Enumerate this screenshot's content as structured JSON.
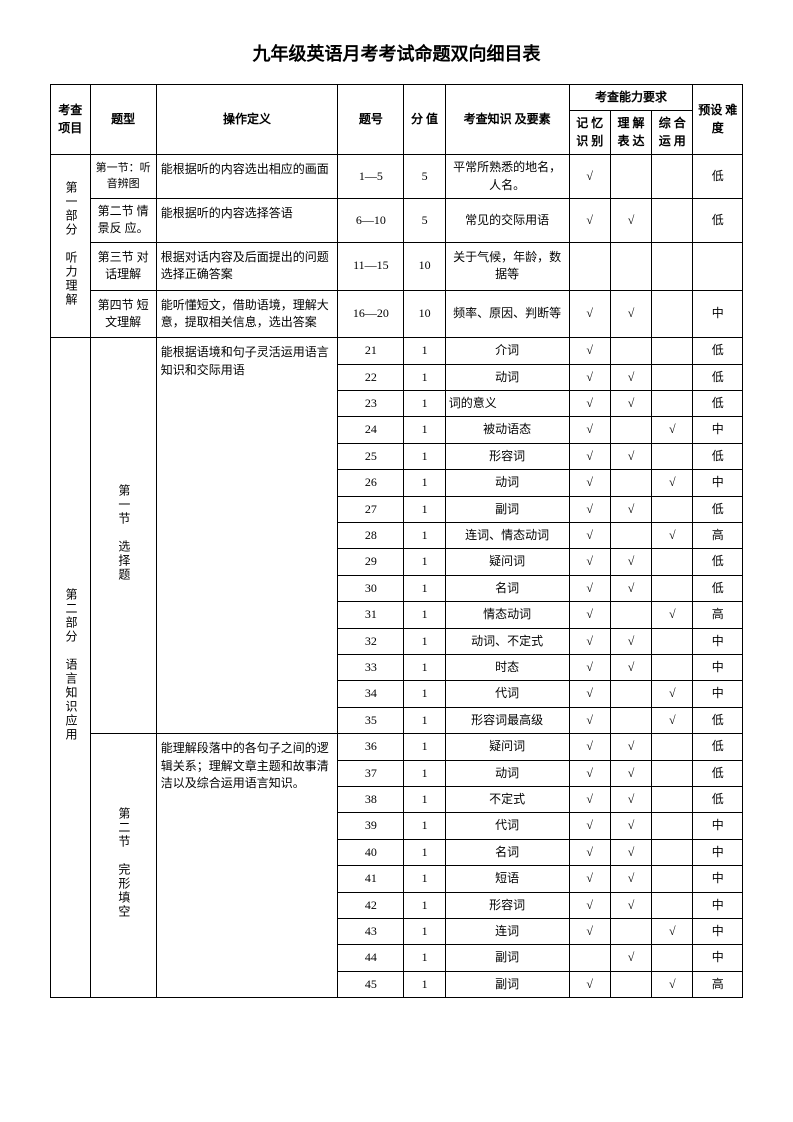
{
  "title": "九年级英语月考考试命题双向细目表",
  "headers": {
    "project": "考查\n项目",
    "type": "题型",
    "definition": "操作定义",
    "number": "题号",
    "score": "分\n值",
    "knowledge": "考查知识\n及要素",
    "ability_group": "考查能力要求",
    "memory": "记\n忆\n识\n别",
    "understand": "理\n解\n表\n达",
    "apply": "综\n合\n运\n用",
    "difficulty": "预设\n难度"
  },
  "part1": {
    "label": "第一部分　听力理解",
    "sec1_type": "第一节：听\n音辨图",
    "sec1_def": "能根据听的内容选出相应的画面",
    "sec1_num": "1—5",
    "sec1_score": "5",
    "sec1_know": "平常所熟悉的地名，人名。",
    "sec1_mem": "√",
    "sec1_und": "",
    "sec1_app": "",
    "sec1_diff": "低",
    "sec2_type": "第二节\n情景反\n应。",
    "sec2_def": "能根据听的内容选择答语",
    "sec2_num": "6—10",
    "sec2_score": "5",
    "sec2_know": "常见的交际用语",
    "sec2_mem": "√",
    "sec2_und": "√",
    "sec2_app": "",
    "sec2_diff": "低",
    "sec3_type": "第三节\n对话理解",
    "sec3_def": "根据对话内容及后面提出的问题选择正确答案",
    "sec3_num": "11—15",
    "sec3_score": "10",
    "sec3_know": "关于气候，年龄，数据等",
    "sec3_mem": "",
    "sec3_und": "",
    "sec3_app": "",
    "sec3_diff": "",
    "sec4_type": "第四节\n短文理解",
    "sec4_def": "能听懂短文，借助语境，理解大意，提取相关信息，选出答案",
    "sec4_num": "16—20",
    "sec4_score": "10",
    "sec4_know": "频率、原因、判断等",
    "sec4_mem": "√",
    "sec4_und": "√",
    "sec4_app": "",
    "sec4_diff": "中"
  },
  "part2": {
    "label": "第二部分　语言知识应用",
    "sec1_type": "第一节　选择题",
    "sec1_def": "能根据语境和句子灵活运用语言知识和交际用语",
    "sec2_type": "第二节　完形填空",
    "sec2_def": "能理解段落中的各句子之间的逻辑关系；理解文章主题和故事清洁以及综合运用语言知识。",
    "rows": [
      {
        "n": "21",
        "s": "1",
        "k": "介词",
        "m": "√",
        "u": "",
        "a": "",
        "d": "低"
      },
      {
        "n": "22",
        "s": "1",
        "k": "动词",
        "m": "√",
        "u": "√",
        "a": "",
        "d": "低"
      },
      {
        "n": "23",
        "s": "1",
        "k": "词的意义",
        "m": "√",
        "u": "√",
        "a": "",
        "d": "低"
      },
      {
        "n": "24",
        "s": "1",
        "k": "被动语态",
        "m": "√",
        "u": "",
        "a": "√",
        "d": "中"
      },
      {
        "n": "25",
        "s": "1",
        "k": "形容词",
        "m": "√",
        "u": "√",
        "a": "",
        "d": "低"
      },
      {
        "n": "26",
        "s": "1",
        "k": "动词",
        "m": "√",
        "u": "",
        "a": "√",
        "d": "中"
      },
      {
        "n": "27",
        "s": "1",
        "k": "副词",
        "m": "√",
        "u": "√",
        "a": "",
        "d": "低"
      },
      {
        "n": "28",
        "s": "1",
        "k": "连词、情态动词",
        "m": "√",
        "u": "",
        "a": "√",
        "d": "高"
      },
      {
        "n": "29",
        "s": "1",
        "k": "疑问词",
        "m": "√",
        "u": "√",
        "a": "",
        "d": "低"
      },
      {
        "n": "30",
        "s": "1",
        "k": "名词",
        "m": "√",
        "u": "√",
        "a": "",
        "d": "低"
      },
      {
        "n": "31",
        "s": "1",
        "k": "情态动词",
        "m": "√",
        "u": "",
        "a": "√",
        "d": "高"
      },
      {
        "n": "32",
        "s": "1",
        "k": "动词、不定式",
        "m": "√",
        "u": "√",
        "a": "",
        "d": "中"
      },
      {
        "n": "33",
        "s": "1",
        "k": "时态",
        "m": "√",
        "u": "√",
        "a": "",
        "d": "中"
      },
      {
        "n": "34",
        "s": "1",
        "k": "代词",
        "m": "√",
        "u": "",
        "a": "√",
        "d": "中"
      },
      {
        "n": "35",
        "s": "1",
        "k": "形容词最高级",
        "m": "√",
        "u": "",
        "a": "√",
        "d": "低"
      },
      {
        "n": "36",
        "s": "1",
        "k": "疑问词",
        "m": "√",
        "u": "√",
        "a": "",
        "d": "低"
      },
      {
        "n": "37",
        "s": "1",
        "k": "动词",
        "m": "√",
        "u": "√",
        "a": "",
        "d": "低"
      },
      {
        "n": "38",
        "s": "1",
        "k": "不定式",
        "m": "√",
        "u": "√",
        "a": "",
        "d": "低"
      },
      {
        "n": "39",
        "s": "1",
        "k": "代词",
        "m": "√",
        "u": "√",
        "a": "",
        "d": "中"
      },
      {
        "n": "40",
        "s": "1",
        "k": "名词",
        "m": "√",
        "u": "√",
        "a": "",
        "d": "中"
      },
      {
        "n": "41",
        "s": "1",
        "k": "短语",
        "m": "√",
        "u": "√",
        "a": "",
        "d": "中"
      },
      {
        "n": "42",
        "s": "1",
        "k": "形容词",
        "m": "√",
        "u": "√",
        "a": "",
        "d": "中"
      },
      {
        "n": "43",
        "s": "1",
        "k": "连词",
        "m": "√",
        "u": "",
        "a": "√",
        "d": "中"
      },
      {
        "n": "44",
        "s": "1",
        "k": "副词",
        "m": "",
        "u": "√",
        "a": "",
        "d": "中"
      },
      {
        "n": "45",
        "s": "1",
        "k": "副词",
        "m": "√",
        "u": "",
        "a": "√",
        "d": "高"
      }
    ]
  }
}
